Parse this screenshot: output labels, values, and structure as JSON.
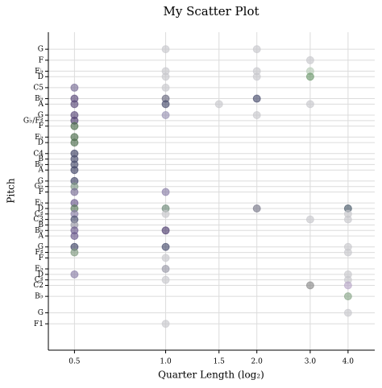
{
  "chart_data": {
    "type": "scatter",
    "title": "My Scatter Plot",
    "x_label": "Quarter Length (log₂)",
    "y_label": "Pitch",
    "xscale": "log2",
    "grid": true,
    "alpha": 0.65,
    "xlim": [
      0.41,
      4.9
    ],
    "xticks": [
      0.5,
      {
        "value": 1,
        "label": "1.0"
      },
      1.5,
      {
        "value": 2,
        "label": "2.0"
      },
      {
        "value": 3,
        "label": "3.0"
      },
      {
        "value": 4,
        "label": "4.0"
      }
    ],
    "ylim": [
      24.2,
      82.1
    ],
    "yticks": [
      {
        "value": 79,
        "label": "G"
      },
      {
        "value": 77,
        "label": "F"
      },
      {
        "value": 75,
        "label": "E♭"
      },
      {
        "value": 74,
        "label": "D"
      },
      {
        "value": 72,
        "label": "C5"
      },
      {
        "value": 70,
        "label": "B♭"
      },
      {
        "value": 69,
        "label": "A"
      },
      {
        "value": 67,
        "label": "G"
      },
      {
        "value": 66,
        "label": "G♭/F♯"
      },
      {
        "value": 65,
        "label": "F"
      },
      {
        "value": 63,
        "label": "E♭"
      },
      {
        "value": 62,
        "label": "D"
      },
      {
        "value": 60,
        "label": "C4"
      },
      {
        "value": 59,
        "label": "B"
      },
      {
        "value": 58,
        "label": "B♭"
      },
      {
        "value": 57,
        "label": "A"
      },
      {
        "value": 55,
        "label": "G"
      },
      {
        "value": 54,
        "label": "G♭"
      },
      {
        "value": 53,
        "label": "F"
      },
      {
        "value": 51,
        "label": "E♭"
      },
      {
        "value": 50,
        "label": "D"
      },
      {
        "value": 49,
        "label": "C♯"
      },
      {
        "value": 48,
        "label": "C3"
      },
      {
        "value": 47,
        "label": "B"
      },
      {
        "value": 46,
        "label": "B♭"
      },
      {
        "value": 45,
        "label": "A"
      },
      {
        "value": 43,
        "label": "G"
      },
      {
        "value": 42,
        "label": "F♯"
      },
      {
        "value": 41,
        "label": "F"
      },
      {
        "value": 39,
        "label": "E♭"
      },
      {
        "value": 38,
        "label": "D"
      },
      {
        "value": 37,
        "label": "C♯"
      },
      {
        "value": 36,
        "label": "C2"
      },
      {
        "value": 34,
        "label": "B♭"
      },
      {
        "value": 31,
        "label": "G"
      },
      {
        "value": 29,
        "label": "F1"
      }
    ],
    "x": [
      0.5,
      0.5,
      0.5,
      0.5,
      0.5,
      0.5,
      0.5,
      0.5,
      0.5,
      0.5,
      0.5,
      0.5,
      0.5,
      0.5,
      0.5,
      0.5,
      0.5,
      0.5,
      0.5,
      0.5,
      0.5,
      0.5,
      0.5,
      0.5,
      0.5,
      1,
      1,
      1,
      1,
      1,
      1,
      1,
      1,
      1,
      1,
      1,
      1,
      1,
      1,
      1,
      1,
      1.5,
      2,
      2,
      2,
      2,
      2,
      2,
      3,
      3,
      3,
      3,
      3,
      3,
      4,
      4,
      4,
      4,
      4,
      4,
      4,
      4,
      4,
      4
    ],
    "y": [
      72,
      70,
      69,
      67,
      66,
      65,
      63,
      62,
      60,
      59,
      58,
      57,
      55,
      54,
      53,
      51,
      50,
      49,
      48,
      47,
      46,
      45,
      43,
      42,
      38,
      79,
      75,
      74,
      72,
      70,
      69,
      67,
      53,
      50,
      49,
      46,
      43,
      41,
      39,
      37,
      29,
      69,
      79,
      75,
      74,
      70,
      67,
      50,
      77,
      75,
      74,
      69,
      48,
      36,
      50,
      49,
      48,
      43,
      42,
      38,
      37,
      36,
      34,
      31
    ],
    "colors": [
      "#7a6e96",
      "#5b4a7a",
      "#5b4a7a",
      "#5b4a7a",
      "#4e3d6e",
      "#4f6e4f",
      "#4f6e4f",
      "#4f6e4f",
      "#3f4466",
      "#4a4f6e",
      "#4a4f6e",
      "#3f4466",
      "#3f4466",
      "#7f9a86",
      "#7a6e96",
      "#6b5a8e",
      "#5a7a5a",
      "#8a80a8",
      "#4a4f6e",
      "#9a9aa8",
      "#6b5a8e",
      "#6b5a8e",
      "#3f4466",
      "#7f9a7f",
      "#8a80a8",
      "#c8c8cc",
      "#c8c8cc",
      "#c8c8cc",
      "#c8c8cc",
      "#6a6a80",
      "#4a4f6e",
      "#9a94b4",
      "#8a80a8",
      "#6f8a7a",
      "#c8c8cc",
      "#4e3d6e",
      "#4a4f6e",
      "#c8c8cc",
      "#9a9aa8",
      "#c8c8cc",
      "#c8c8cc",
      "#c8c8cc",
      "#c8c8cc",
      "#c8c8cc",
      "#c8c8cc",
      "#4a4f6e",
      "#c8c8cc",
      "#7a7a8a",
      "#c8c8cc",
      "#b8ccb8",
      "#6f9a6f",
      "#c8c8cc",
      "#c8c8cc",
      "#8a8a8a",
      "#4a5a6a",
      "#c8c8cc",
      "#c8c8cc",
      "#c8c8cc",
      "#c8c8cc",
      "#c8c8cc",
      "#c8c8cc",
      "#b8a8c8",
      "#8aa88a",
      "#c8c8cc"
    ]
  }
}
